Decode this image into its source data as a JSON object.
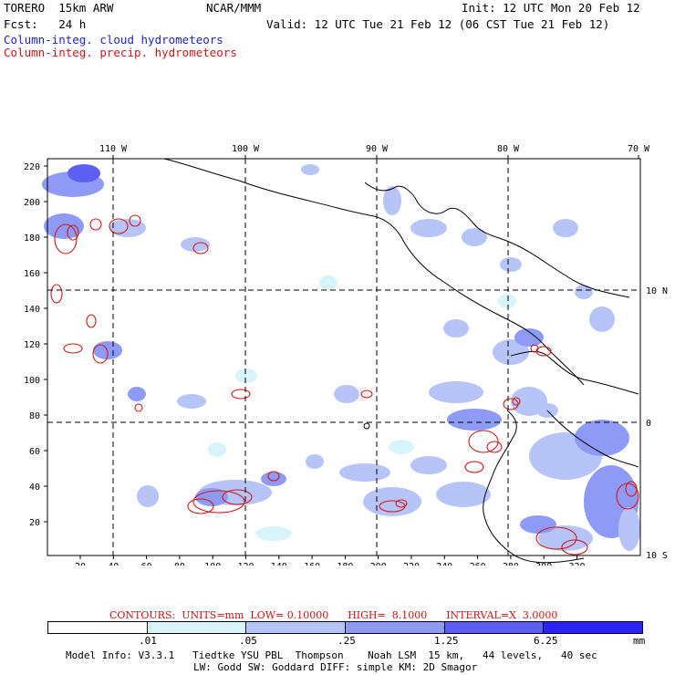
{
  "header": {
    "model_label": "TORERO  15km ARW",
    "org": "NCAR/MMM",
    "init": "Init: 12 UTC Mon 20 Feb 12",
    "fcst": "Fcst:   24 h",
    "valid": "Valid: 12 UTC Tue 21 Feb 12 (06 CST Tue 21 Feb 12)",
    "field1": "Column-integ. cloud hydrometeors",
    "field2": "Column-integ. precip. hydrometeors"
  },
  "colors": {
    "field1": "#2424c8",
    "field2": "#d01818",
    "shade": [
      "#ffffff",
      "#d8f4fb",
      "#b7c4f8",
      "#8d9af6",
      "#5d5ef2",
      "#2a22ee"
    ]
  },
  "axes": {
    "top_lon": [
      "110 W",
      "100 W",
      "90 W",
      "80 W",
      "70 W"
    ],
    "right_lat": [
      "10 N",
      "0",
      "10 S"
    ],
    "left_ticks": [
      "220",
      "200",
      "180",
      "160",
      "140",
      "120",
      "100",
      "80",
      "60",
      "40",
      "20"
    ],
    "bottom_ticks": [
      "20",
      "40",
      "60",
      "80",
      "100",
      "120",
      "140",
      "160",
      "180",
      "200",
      "220",
      "240",
      "260",
      "280",
      "300",
      "320"
    ]
  },
  "contours": {
    "text": "CONTOURS:  UNITS=mm  LOW= 0.10000      HIGH=  8.1000      INTERVAL=X  3.0000"
  },
  "colorbar": {
    "levels": [
      ".01",
      ".05",
      ".25",
      "1.25",
      "6.25"
    ],
    "units": "mm"
  },
  "footer": {
    "line1": "Model Info: V3.3.1   Tiedtke YSU PBL  Thompson    Noah LSM  15 km,   44 levels,   40 sec",
    "line2": "LW: Godd SW: Goddard DIFF: simple KM: 2D Smagor"
  }
}
